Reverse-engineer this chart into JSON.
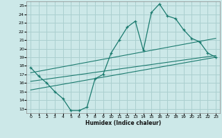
{
  "xlabel": "Humidex (Indice chaleur)",
  "background_color": "#cce8e8",
  "grid_color": "#aacfcf",
  "line_color": "#1a7a6e",
  "xlim": [
    -0.5,
    23.5
  ],
  "ylim": [
    12.5,
    25.5
  ],
  "xticks": [
    0,
    1,
    2,
    3,
    4,
    5,
    6,
    7,
    8,
    9,
    10,
    11,
    12,
    13,
    14,
    15,
    16,
    17,
    18,
    19,
    20,
    21,
    22,
    23
  ],
  "yticks": [
    13,
    14,
    15,
    16,
    17,
    18,
    19,
    20,
    21,
    22,
    23,
    24,
    25
  ],
  "line1_x": [
    0,
    1,
    2,
    3,
    4,
    5,
    6,
    7,
    8,
    9,
    10,
    11,
    12,
    13,
    14,
    15,
    16,
    17,
    18,
    19,
    20,
    21,
    22,
    23
  ],
  "line1_y": [
    17.8,
    16.8,
    16.0,
    15.0,
    14.2,
    12.8,
    12.8,
    13.2,
    16.5,
    17.0,
    19.5,
    21.0,
    22.5,
    23.2,
    19.8,
    24.2,
    25.2,
    23.8,
    23.5,
    22.2,
    21.2,
    20.8,
    19.5,
    19.0
  ],
  "line2_x": [
    0,
    23
  ],
  "line2_y": [
    17.2,
    21.2
  ],
  "line3_x": [
    0,
    23
  ],
  "line3_y": [
    16.2,
    19.2
  ],
  "line4_x": [
    0,
    23
  ],
  "line4_y": [
    15.2,
    19.0
  ]
}
